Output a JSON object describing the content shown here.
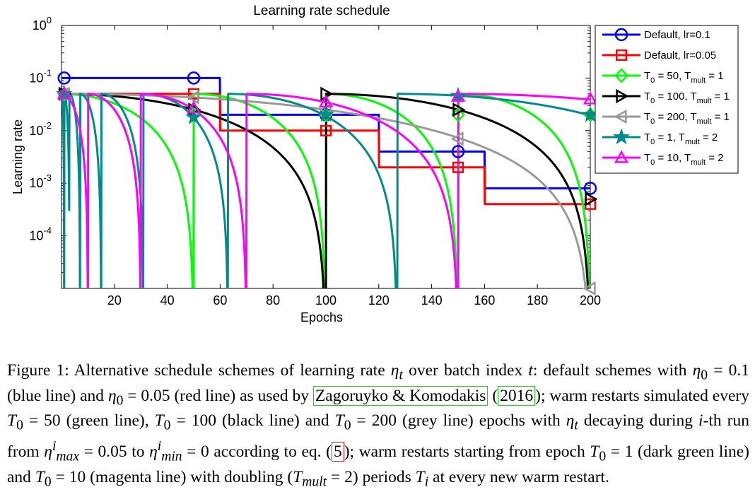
{
  "chart_data": {
    "type": "line",
    "title": "Learning rate schedule",
    "xlabel": "Epochs",
    "ylabel": "Learning rate",
    "xlim": [
      0,
      200
    ],
    "ylim": [
      1e-05,
      1
    ],
    "yscale": "log",
    "x_ticks": [
      20,
      40,
      60,
      80,
      100,
      120,
      140,
      160,
      180,
      200
    ],
    "x_tick_labels": [
      "20",
      "40",
      "60",
      "80",
      "100",
      "120",
      "140",
      "160",
      "180",
      "200"
    ],
    "y_ticks": [
      0.0001,
      0.001,
      0.01,
      0.1,
      1
    ],
    "y_tick_labels": [
      {
        "base": "10",
        "exp": "-4"
      },
      {
        "base": "10",
        "exp": "-3"
      },
      {
        "base": "10",
        "exp": "-2"
      },
      {
        "base": "10",
        "exp": "-1"
      },
      {
        "base": "10",
        "exp": "0"
      }
    ],
    "legend_position": "outside-right-top",
    "series": [
      {
        "name": "Default, lr=0.1",
        "label": {
          "t0": "Default, lr=0.1"
        },
        "color": "#0000ff",
        "marker": "circle",
        "kind": "step",
        "lr0": 0.1,
        "step_epochs": [
          60,
          120,
          160
        ],
        "factor": 0.2,
        "marker_x": [
          1,
          50,
          100,
          150,
          200
        ],
        "marker_y": [
          0.1,
          0.1,
          0.02,
          0.004,
          0.0008
        ]
      },
      {
        "name": "Default, lr=0.05",
        "label": {
          "t0": "Default, lr=0.05"
        },
        "color": "#ff0000",
        "marker": "square",
        "kind": "step",
        "lr0": 0.05,
        "step_epochs": [
          60,
          120,
          160
        ],
        "factor": 0.2,
        "marker_x": [
          1,
          50,
          100,
          150,
          200
        ],
        "marker_y": [
          0.05,
          0.05,
          0.01,
          0.002,
          0.0004
        ]
      },
      {
        "name": "T_0 = 50, T_mult = 1",
        "label": {
          "t0": "T",
          "t1": "0",
          "t2": " = 50, T",
          "t3": "mult",
          "t4": " = 1"
        },
        "color": "#00ff00",
        "marker": "diamond",
        "kind": "sgdr",
        "T0": 50,
        "Tmult": 1,
        "eta_max": 0.05,
        "marker_x": [
          1,
          50,
          100,
          150,
          200
        ],
        "marker_y": [
          0.05,
          0.02,
          0.02,
          0.02,
          0.02
        ]
      },
      {
        "name": "T_0 = 100, T_mult = 1",
        "label": {
          "t0": "T",
          "t1": "0",
          "t2": " = 100, T",
          "t3": "mult",
          "t4": " = 1"
        },
        "color": "#000000",
        "marker": "triangle-right",
        "kind": "sgdr",
        "T0": 100,
        "Tmult": 1,
        "eta_max": 0.05,
        "marker_x": [
          1,
          50,
          100,
          150,
          200
        ],
        "marker_y": [
          0.05,
          0.025,
          0.05,
          0.025,
          0.0005
        ]
      },
      {
        "name": "T_0 = 200, T_mult = 1",
        "label": {
          "t0": "T",
          "t1": "0",
          "t2": " = 200, T",
          "t3": "mult",
          "t4": " = 1"
        },
        "color": "#999999",
        "marker": "triangle-left",
        "kind": "sgdr",
        "T0": 200,
        "Tmult": 1,
        "eta_max": 0.05,
        "marker_x": [
          1,
          50,
          100,
          150,
          200
        ],
        "marker_y": [
          0.05,
          0.043,
          0.025,
          0.007,
          1e-05
        ]
      },
      {
        "name": "T_0 = 1, T_mult = 2",
        "label": {
          "t0": "T",
          "t1": "0",
          "t2": " = 1, T",
          "t3": "mult",
          "t4": " = 2"
        },
        "color": "#008b8b",
        "marker": "star",
        "kind": "sgdr",
        "T0": 1,
        "Tmult": 2,
        "eta_max": 0.05,
        "marker_x": [
          1,
          50,
          100,
          150,
          200
        ],
        "marker_y": [
          0.05,
          0.018,
          0.02,
          0.046,
          0.02
        ]
      },
      {
        "name": "T_0 = 10, T_mult = 2",
        "label": {
          "t0": "T",
          "t1": "0",
          "t2": " = 10, T",
          "t3": "mult",
          "t4": " = 2"
        },
        "color": "#ff00ff",
        "marker": "triangle-up",
        "kind": "sgdr",
        "T0": 10,
        "Tmult": 2,
        "eta_max": 0.05,
        "marker_x": [
          1,
          50,
          100,
          150,
          200
        ],
        "marker_y": [
          0.05,
          0.027,
          0.035,
          0.045,
          0.04
        ]
      }
    ]
  },
  "caption": {
    "s1": "Figure 1:   Alternative schedule schemes of learning rate ",
    "eta": "η",
    "t": "t",
    "s2": " over batch index ",
    "s3": ": default schemes with ",
    "eq1": " = 0.1 (blue line) and ",
    "eq2": " = 0.05 (red line) as used by ",
    "cite_authors": "Zagoruyko & Komodakis",
    "open_paren": " (",
    "cite_year": "2016",
    "close_paren": ");",
    "s4": " warm restarts simulated every ",
    "T": "T",
    "zero": "0",
    "s5": " = 50 (green line), ",
    "s6": " = 100 (black line) and ",
    "s7": " = 200 (grey line) epochs with ",
    "s8": " decaying during ",
    "i": "i",
    "s9": "-th run from ",
    "max_sub": "max",
    "min_sub": "min",
    "s10": " = 0.05 to ",
    "s11": " = 0 according to eq. (",
    "eq_ref": "5",
    "s12": "); warm restarts starting from epoch ",
    "s13": " = 1 (dark green line) and ",
    "s14": " = 10 (magenta line) with doubling (",
    "mult_sub": "mult",
    "s15": " = 2) periods ",
    "s16": " at every new warm restart."
  }
}
